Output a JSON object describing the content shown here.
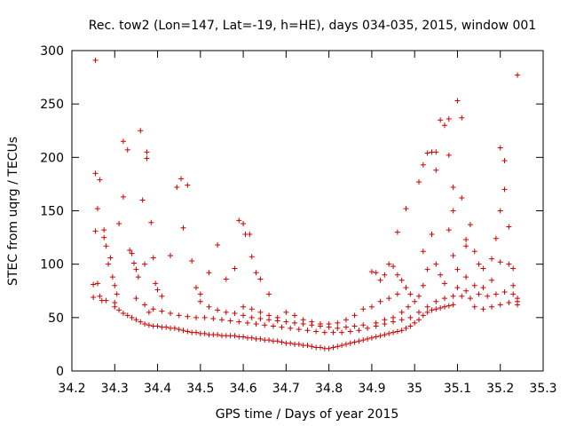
{
  "chart_data": {
    "type": "scatter",
    "title": "Rec. tow2 (Lon=147, Lat=-19, h=HE), days 034-035, 2015, window 001",
    "xlabel": "GPS time / Days of year 2015",
    "ylabel": "STEC from uqrg / TECUs",
    "xlim": [
      34.2,
      35.3
    ],
    "ylim": [
      0,
      300
    ],
    "x_ticks": [
      34.2,
      34.3,
      34.4,
      34.5,
      34.6,
      34.7,
      34.8,
      34.9,
      35,
      35.1,
      35.2,
      35.3
    ],
    "x_tick_labels": [
      "34.2",
      "34.3",
      "34.4",
      "34.5",
      "34.6",
      "34.7",
      "34.8",
      "34.9",
      "35",
      "35.1",
      "35.2",
      "35.3"
    ],
    "y_ticks": [
      0,
      50,
      100,
      150,
      200,
      250,
      300
    ],
    "y_tick_labels": [
      "0",
      "50",
      "100",
      "150",
      "200",
      "250",
      "300"
    ],
    "grid": false,
    "marker": "plus",
    "color": "#cc0000",
    "series": [
      {
        "values": [
          [
            34.255,
            291
          ],
          [
            34.255,
            185
          ],
          [
            34.265,
            179
          ],
          [
            34.26,
            152
          ],
          [
            34.255,
            131
          ],
          [
            34.275,
            132
          ],
          [
            34.275,
            125
          ],
          [
            34.28,
            117
          ],
          [
            34.25,
            81
          ],
          [
            34.26,
            82
          ],
          [
            34.265,
            70
          ],
          [
            34.25,
            69
          ],
          [
            34.27,
            66
          ],
          [
            34.28,
            66
          ],
          [
            34.285,
            100
          ],
          [
            34.29,
            106
          ],
          [
            34.295,
            88
          ],
          [
            34.3,
            80
          ],
          [
            34.305,
            72
          ],
          [
            34.3,
            64
          ],
          [
            34.31,
            138
          ],
          [
            34.32,
            215
          ],
          [
            34.32,
            163
          ],
          [
            34.33,
            207
          ],
          [
            34.335,
            113
          ],
          [
            34.34,
            110
          ],
          [
            34.345,
            101
          ],
          [
            34.35,
            95
          ],
          [
            34.355,
            88
          ],
          [
            34.36,
            225
          ],
          [
            34.365,
            160
          ],
          [
            34.37,
            100
          ],
          [
            34.375,
            205
          ],
          [
            34.375,
            199
          ],
          [
            34.385,
            139
          ],
          [
            34.39,
            106
          ],
          [
            34.395,
            82
          ],
          [
            34.4,
            76
          ],
          [
            34.41,
            70
          ],
          [
            34.38,
            55
          ],
          [
            34.43,
            108
          ],
          [
            34.445,
            172
          ],
          [
            34.455,
            180
          ],
          [
            34.46,
            134
          ],
          [
            34.47,
            174
          ],
          [
            34.48,
            103
          ],
          [
            34.49,
            78
          ],
          [
            34.5,
            72
          ],
          [
            34.52,
            92
          ],
          [
            34.54,
            118
          ],
          [
            34.56,
            86
          ],
          [
            34.58,
            96
          ],
          [
            34.59,
            141
          ],
          [
            34.6,
            138
          ],
          [
            34.605,
            128
          ],
          [
            34.615,
            128
          ],
          [
            34.62,
            107
          ],
          [
            34.63,
            92
          ],
          [
            34.64,
            86
          ],
          [
            34.66,
            72
          ],
          [
            34.3,
            60
          ],
          [
            34.31,
            57
          ],
          [
            34.32,
            54
          ],
          [
            34.33,
            52
          ],
          [
            34.34,
            50
          ],
          [
            34.35,
            48
          ],
          [
            34.36,
            46
          ],
          [
            34.37,
            44
          ],
          [
            34.38,
            43
          ],
          [
            34.39,
            42
          ],
          [
            34.4,
            42
          ],
          [
            34.41,
            41
          ],
          [
            34.42,
            41
          ],
          [
            34.43,
            40
          ],
          [
            34.44,
            40
          ],
          [
            34.45,
            39
          ],
          [
            34.46,
            38
          ],
          [
            34.47,
            37
          ],
          [
            34.48,
            36
          ],
          [
            34.49,
            36
          ],
          [
            34.5,
            35
          ],
          [
            34.51,
            35
          ],
          [
            34.52,
            34
          ],
          [
            34.53,
            34
          ],
          [
            34.54,
            34
          ],
          [
            34.55,
            33
          ],
          [
            34.56,
            33
          ],
          [
            34.57,
            33
          ],
          [
            34.58,
            33
          ],
          [
            34.59,
            32
          ],
          [
            34.6,
            32
          ],
          [
            34.61,
            31
          ],
          [
            34.62,
            31
          ],
          [
            34.63,
            30
          ],
          [
            34.64,
            30
          ],
          [
            34.65,
            29
          ],
          [
            34.66,
            29
          ],
          [
            34.67,
            28
          ],
          [
            34.68,
            28
          ],
          [
            34.69,
            27
          ],
          [
            34.7,
            26
          ],
          [
            34.71,
            26
          ],
          [
            34.72,
            25
          ],
          [
            34.73,
            25
          ],
          [
            34.74,
            24
          ],
          [
            34.75,
            24
          ],
          [
            34.76,
            23
          ],
          [
            34.77,
            22
          ],
          [
            34.78,
            22
          ],
          [
            34.79,
            21
          ],
          [
            34.8,
            21
          ],
          [
            34.81,
            22
          ],
          [
            34.82,
            23
          ],
          [
            34.83,
            24
          ],
          [
            34.84,
            25
          ],
          [
            34.85,
            26
          ],
          [
            34.86,
            27
          ],
          [
            34.87,
            28
          ],
          [
            34.88,
            29
          ],
          [
            34.89,
            30
          ],
          [
            34.9,
            31
          ],
          [
            34.91,
            32
          ],
          [
            34.92,
            33
          ],
          [
            34.93,
            34
          ],
          [
            34.94,
            35
          ],
          [
            34.95,
            36
          ],
          [
            34.96,
            37
          ],
          [
            34.97,
            38
          ],
          [
            34.98,
            40
          ],
          [
            34.99,
            42
          ],
          [
            35.0,
            45
          ],
          [
            35.01,
            48
          ],
          [
            35.02,
            52
          ],
          [
            35.03,
            55
          ],
          [
            35.04,
            57
          ],
          [
            35.05,
            58
          ],
          [
            35.06,
            59
          ],
          [
            35.07,
            60
          ],
          [
            35.08,
            61
          ],
          [
            35.09,
            62
          ],
          [
            34.35,
            68
          ],
          [
            34.37,
            62
          ],
          [
            34.39,
            58
          ],
          [
            34.41,
            56
          ],
          [
            34.43,
            54
          ],
          [
            34.45,
            52
          ],
          [
            34.47,
            51
          ],
          [
            34.49,
            50
          ],
          [
            34.51,
            50
          ],
          [
            34.53,
            49
          ],
          [
            34.55,
            48
          ],
          [
            34.57,
            47
          ],
          [
            34.59,
            46
          ],
          [
            34.61,
            45
          ],
          [
            34.63,
            44
          ],
          [
            34.65,
            43
          ],
          [
            34.67,
            42
          ],
          [
            34.69,
            41
          ],
          [
            34.71,
            40
          ],
          [
            34.73,
            39
          ],
          [
            34.75,
            38
          ],
          [
            34.77,
            37
          ],
          [
            34.79,
            36
          ],
          [
            34.81,
            36
          ],
          [
            34.83,
            36
          ],
          [
            34.85,
            37
          ],
          [
            34.87,
            38
          ],
          [
            34.89,
            40
          ],
          [
            34.91,
            42
          ],
          [
            34.93,
            44
          ],
          [
            34.95,
            46
          ],
          [
            34.97,
            48
          ],
          [
            34.99,
            50
          ],
          [
            35.01,
            55
          ],
          [
            35.03,
            60
          ],
          [
            35.05,
            65
          ],
          [
            35.07,
            68
          ],
          [
            35.09,
            70
          ],
          [
            35.11,
            70
          ],
          [
            35.13,
            68
          ],
          [
            34.5,
            65
          ],
          [
            34.52,
            60
          ],
          [
            34.54,
            57
          ],
          [
            34.56,
            55
          ],
          [
            34.58,
            54
          ],
          [
            34.6,
            52
          ],
          [
            34.62,
            50
          ],
          [
            34.64,
            49
          ],
          [
            34.66,
            48
          ],
          [
            34.68,
            47
          ],
          [
            34.7,
            46
          ],
          [
            34.72,
            45
          ],
          [
            34.74,
            44
          ],
          [
            34.76,
            43
          ],
          [
            34.78,
            42
          ],
          [
            34.8,
            41
          ],
          [
            34.82,
            40
          ],
          [
            34.84,
            41
          ],
          [
            34.86,
            42
          ],
          [
            34.88,
            43
          ],
          [
            34.6,
            60
          ],
          [
            34.62,
            58
          ],
          [
            34.64,
            55
          ],
          [
            34.66,
            52
          ],
          [
            34.68,
            50
          ],
          [
            34.7,
            55
          ],
          [
            34.72,
            52
          ],
          [
            34.74,
            48
          ],
          [
            34.76,
            46
          ],
          [
            34.78,
            44
          ],
          [
            34.8,
            44
          ],
          [
            34.82,
            45
          ],
          [
            34.84,
            48
          ],
          [
            34.86,
            52
          ],
          [
            34.88,
            58
          ],
          [
            34.9,
            60
          ],
          [
            34.92,
            65
          ],
          [
            34.94,
            68
          ],
          [
            34.96,
            72
          ],
          [
            34.98,
            78
          ],
          [
            34.9,
            93
          ],
          [
            34.91,
            92
          ],
          [
            34.92,
            85
          ],
          [
            34.93,
            90
          ],
          [
            34.94,
            100
          ],
          [
            34.95,
            98
          ],
          [
            34.96,
            90
          ],
          [
            34.97,
            85
          ],
          [
            34.96,
            130
          ],
          [
            34.98,
            152
          ],
          [
            35.01,
            177
          ],
          [
            35.02,
            193
          ],
          [
            35.03,
            204
          ],
          [
            35.04,
            205
          ],
          [
            35.05,
            205
          ],
          [
            35.05,
            188
          ],
          [
            35.06,
            235
          ],
          [
            35.07,
            230
          ],
          [
            35.08,
            236
          ],
          [
            35.08,
            202
          ],
          [
            35.09,
            150
          ],
          [
            35.09,
            172
          ],
          [
            35.1,
            253
          ],
          [
            35.11,
            237
          ],
          [
            35.11,
            162
          ],
          [
            35.12,
            123
          ],
          [
            35.12,
            117
          ],
          [
            35.13,
            137
          ],
          [
            35.14,
            112
          ],
          [
            35.15,
            100
          ],
          [
            35.16,
            96
          ],
          [
            35.18,
            105
          ],
          [
            35.19,
            124
          ],
          [
            35.2,
            209
          ],
          [
            35.2,
            150
          ],
          [
            35.21,
            197
          ],
          [
            35.21,
            170
          ],
          [
            35.22,
            135
          ],
          [
            35.23,
            96
          ],
          [
            35.24,
            277
          ],
          [
            35.02,
            112
          ],
          [
            35.03,
            95
          ],
          [
            35.04,
            128
          ],
          [
            35.05,
            100
          ],
          [
            35.06,
            90
          ],
          [
            35.07,
            82
          ],
          [
            35.08,
            132
          ],
          [
            35.09,
            108
          ],
          [
            35.1,
            95
          ],
          [
            35.12,
            88
          ],
          [
            35.14,
            80
          ],
          [
            35.16,
            78
          ],
          [
            35.18,
            85
          ],
          [
            35.2,
            102
          ],
          [
            35.22,
            100
          ],
          [
            35.23,
            80
          ],
          [
            35.24,
            68
          ],
          [
            35.14,
            60
          ],
          [
            35.16,
            58
          ],
          [
            35.18,
            60
          ],
          [
            35.2,
            62
          ],
          [
            35.22,
            64
          ],
          [
            35.24,
            62
          ],
          [
            35.15,
            72
          ],
          [
            35.17,
            70
          ],
          [
            35.19,
            72
          ],
          [
            35.21,
            74
          ],
          [
            35.23,
            72
          ],
          [
            35.24,
            65
          ],
          [
            35.12,
            75
          ],
          [
            35.1,
            78
          ],
          [
            35.0,
            65
          ],
          [
            35.01,
            70
          ],
          [
            35.02,
            80
          ],
          [
            34.99,
            72
          ],
          [
            34.985,
            60
          ],
          [
            34.97,
            55
          ],
          [
            34.95,
            50
          ],
          [
            34.93,
            48
          ],
          [
            34.91,
            45
          ]
        ]
      }
    ]
  }
}
